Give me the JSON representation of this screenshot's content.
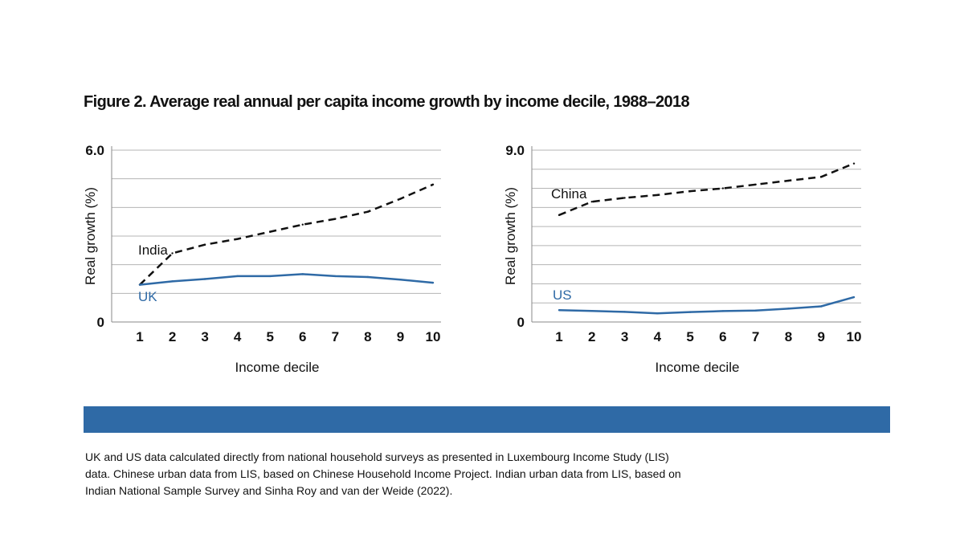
{
  "title": "Figure 2. Average real annual per capita income growth by income decile, 1988–2018",
  "colors": {
    "accent": "#2f6aa6",
    "dashed_series": "#111111",
    "gridline": "#b5b5b5",
    "band": "#2f6aa6"
  },
  "chart_data": [
    {
      "type": "line",
      "xlabel": "Income decile",
      "ylabel": "Real growth (%)",
      "x": [
        1,
        2,
        3,
        4,
        5,
        6,
        7,
        8,
        9,
        10
      ],
      "ylim": [
        0,
        6.0
      ],
      "yticks": [
        0,
        1,
        2,
        3,
        4,
        5,
        6
      ],
      "ytick_labels": [
        "0",
        "",
        "",
        "",
        "",
        "",
        "6.0"
      ],
      "grid": true,
      "series": [
        {
          "name": "India",
          "style": "dashed",
          "color": "#111111",
          "values": [
            1.3,
            2.4,
            2.7,
            2.9,
            3.15,
            3.4,
            3.6,
            3.85,
            4.3,
            4.8
          ]
        },
        {
          "name": "UK",
          "style": "solid",
          "color": "#2f6aa6",
          "values": [
            1.3,
            1.42,
            1.5,
            1.6,
            1.6,
            1.67,
            1.6,
            1.57,
            1.48,
            1.37
          ]
        }
      ]
    },
    {
      "type": "line",
      "xlabel": "Income decile",
      "ylabel": "Real growth (%)",
      "x": [
        1,
        2,
        3,
        4,
        5,
        6,
        7,
        8,
        9,
        10
      ],
      "ylim": [
        0,
        9.0
      ],
      "yticks": [
        0,
        1,
        2,
        3,
        4,
        5,
        6,
        7,
        8,
        9
      ],
      "ytick_labels": [
        "0",
        "",
        "",
        "",
        "",
        "",
        "",
        "",
        "",
        "9.0"
      ],
      "grid": true,
      "series": [
        {
          "name": "China",
          "style": "dashed",
          "color": "#111111",
          "values": [
            5.6,
            6.3,
            6.5,
            6.65,
            6.85,
            7.0,
            7.2,
            7.4,
            7.6,
            8.3
          ]
        },
        {
          "name": "US",
          "style": "solid",
          "color": "#2f6aa6",
          "values": [
            0.62,
            0.58,
            0.53,
            0.45,
            0.52,
            0.57,
            0.6,
            0.7,
            0.82,
            1.3
          ]
        }
      ]
    }
  ],
  "source_note": "UK and US data calculated directly from national household surveys as presented in Luxembourg Income Study (LIS) data. Chinese urban data from LIS, based on Chinese Household Income Project. Indian urban data from LIS, based on Indian National Sample Survey and Sinha Roy and van der Weide (2022)."
}
